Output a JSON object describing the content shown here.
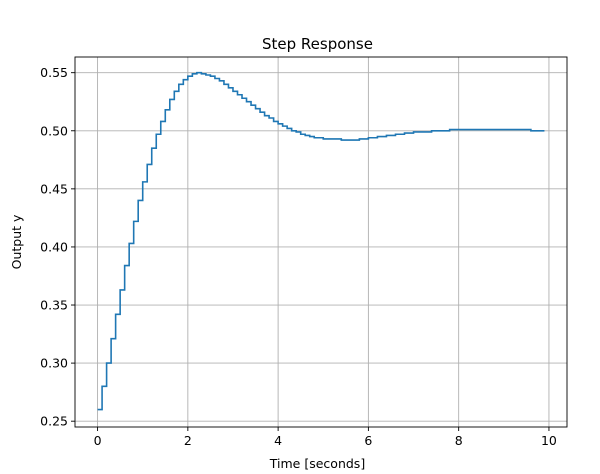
{
  "chart_data": {
    "type": "line",
    "step": "post",
    "title": "Step Response",
    "xlabel": "Time [seconds]",
    "ylabel": "Output y",
    "xlim": [
      -0.5,
      10.4
    ],
    "ylim": [
      0.245,
      0.5635
    ],
    "xticks": [
      0,
      2,
      4,
      6,
      8,
      10
    ],
    "xtick_labels": [
      "0",
      "2",
      "4",
      "6",
      "8",
      "10"
    ],
    "yticks": [
      0.25,
      0.3,
      0.35,
      0.4,
      0.45,
      0.5,
      0.55
    ],
    "ytick_labels": [
      "0.25",
      "0.30",
      "0.35",
      "0.40",
      "0.45",
      "0.50",
      "0.55"
    ],
    "grid": true,
    "line_color": "#1f77b4",
    "series": [
      {
        "x": [
          0.0,
          0.1,
          0.2,
          0.3,
          0.4,
          0.5,
          0.6,
          0.7,
          0.8,
          0.9,
          1.0,
          1.1,
          1.2,
          1.3,
          1.4,
          1.5,
          1.6,
          1.7,
          1.8,
          1.9,
          2.0,
          2.1,
          2.2,
          2.3,
          2.4,
          2.5,
          2.6,
          2.7,
          2.8,
          2.9,
          3.0,
          3.1,
          3.2,
          3.3,
          3.4,
          3.5,
          3.6,
          3.7,
          3.8,
          3.9,
          4.0,
          4.1,
          4.2,
          4.3,
          4.4,
          4.5,
          4.6,
          4.7,
          4.8,
          4.9,
          5.0,
          5.2,
          5.4,
          5.6,
          5.8,
          6.0,
          6.2,
          6.4,
          6.6,
          6.8,
          7.0,
          7.2,
          7.4,
          7.6,
          7.8,
          8.0,
          8.2,
          8.4,
          8.6,
          8.8,
          9.0,
          9.2,
          9.4,
          9.6,
          9.8,
          9.9
        ],
        "y": [
          0.26,
          0.28,
          0.3,
          0.321,
          0.342,
          0.363,
          0.384,
          0.403,
          0.422,
          0.44,
          0.456,
          0.471,
          0.485,
          0.497,
          0.508,
          0.518,
          0.527,
          0.534,
          0.54,
          0.544,
          0.547,
          0.549,
          0.55,
          0.549,
          0.548,
          0.547,
          0.545,
          0.543,
          0.54,
          0.537,
          0.534,
          0.531,
          0.528,
          0.525,
          0.522,
          0.519,
          0.516,
          0.513,
          0.511,
          0.508,
          0.506,
          0.504,
          0.502,
          0.5,
          0.499,
          0.497,
          0.496,
          0.495,
          0.494,
          0.494,
          0.493,
          0.493,
          0.492,
          0.492,
          0.493,
          0.494,
          0.495,
          0.496,
          0.497,
          0.498,
          0.499,
          0.499,
          0.5,
          0.5,
          0.501,
          0.501,
          0.501,
          0.501,
          0.501,
          0.501,
          0.501,
          0.501,
          0.501,
          0.5,
          0.5,
          0.5
        ]
      }
    ]
  }
}
